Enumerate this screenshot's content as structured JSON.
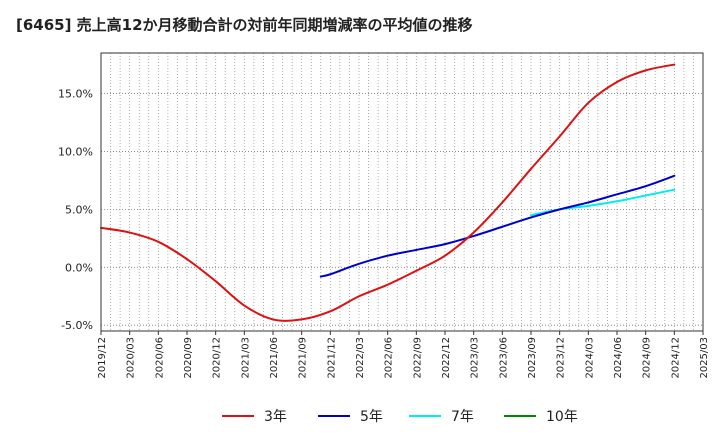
{
  "chart_data": {
    "type": "line",
    "title": "[6465]  売上高12か月移動合計の対前年同期増減率の平均値の推移",
    "xlabel": "",
    "ylabel": "",
    "ylim": [
      -5.5,
      18.5
    ],
    "yticks": [
      -5.0,
      0.0,
      5.0,
      10.0,
      15.0
    ],
    "ytick_labels": [
      "-5.0%",
      "0.0%",
      "5.0%",
      "10.0%",
      "15.0%"
    ],
    "xtick_labels": [
      "2019/12",
      "2020/03",
      "2020/06",
      "2020/09",
      "2020/12",
      "2021/03",
      "2021/06",
      "2021/09",
      "2021/12",
      "2022/03",
      "2022/06",
      "2022/09",
      "2022/12",
      "2023/03",
      "2023/06",
      "2023/09",
      "2023/12",
      "2024/03",
      "2024/06",
      "2024/09",
      "2024/12",
      "2025/03"
    ],
    "grid": true,
    "legend_position": "bottom",
    "series": [
      {
        "name": "3年",
        "color": "#dd1111",
        "x": [
          "2019/12",
          "2020/03",
          "2020/06",
          "2020/09",
          "2020/12",
          "2021/03",
          "2021/06",
          "2021/09",
          "2021/12",
          "2022/03",
          "2022/06",
          "2022/09",
          "2022/12",
          "2023/03",
          "2023/06",
          "2023/09",
          "2023/12",
          "2024/03",
          "2024/06",
          "2024/09",
          "2024/12"
        ],
        "values": [
          3.4,
          3.0,
          2.2,
          0.7,
          -1.2,
          -3.3,
          -4.5,
          -4.5,
          -3.8,
          -2.5,
          -1.5,
          -0.3,
          1.0,
          3.0,
          5.6,
          8.5,
          11.3,
          14.2,
          16.0,
          17.0,
          17.5
        ]
      },
      {
        "name": "5年",
        "color": "#0000cc",
        "x": [
          "2021/11",
          "2021/12",
          "2022/03",
          "2022/06",
          "2022/09",
          "2022/12",
          "2023/03",
          "2023/06",
          "2023/09",
          "2023/12",
          "2024/03",
          "2024/06",
          "2024/09",
          "2024/12"
        ],
        "values": [
          -0.8,
          -0.6,
          0.3,
          1.0,
          1.5,
          2.0,
          2.7,
          3.5,
          4.3,
          5.0,
          5.6,
          6.3,
          7.0,
          7.9
        ]
      },
      {
        "name": "7年",
        "color": "#00eeee",
        "x": [
          "2023/09",
          "2023/12",
          "2024/03",
          "2024/06",
          "2024/09",
          "2024/12"
        ],
        "values": [
          4.5,
          5.0,
          5.3,
          5.7,
          6.2,
          6.7
        ]
      },
      {
        "name": "10年",
        "color": "#008800",
        "x": [],
        "values": []
      }
    ]
  }
}
